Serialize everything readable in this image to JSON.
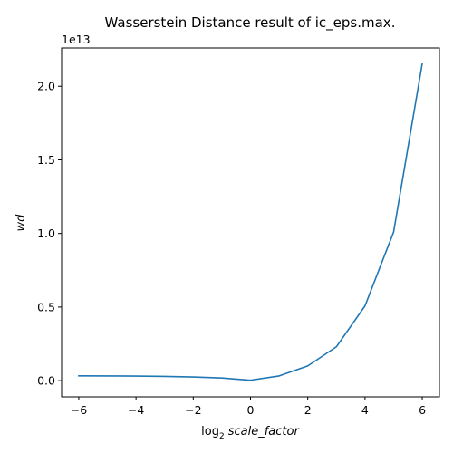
{
  "chart_data": {
    "type": "line",
    "title": "Wasserstein Distance result of ic_eps.max.",
    "xlabel_prefix": "log",
    "xlabel_sub": "2",
    "xlabel_var": "scale_factor",
    "ylabel": "wd",
    "offset_text": "1e13",
    "xlim": [
      -6.6,
      6.6
    ],
    "ylim": [
      -0.11,
      2.26
    ],
    "xticks": [
      -6,
      -4,
      -2,
      0,
      2,
      4,
      6
    ],
    "xtick_labels": [
      "−6",
      "−4",
      "−2",
      "0",
      "2",
      "4",
      "6"
    ],
    "yticks": [
      0.0,
      0.5,
      1.0,
      1.5,
      2.0
    ],
    "ytick_labels": [
      "0.0",
      "0.5",
      "1.0",
      "1.5",
      "2.0"
    ],
    "grid": false,
    "series": [
      {
        "color": "#1f77b4",
        "x": [
          -6,
          -5,
          -4,
          -3,
          -2,
          -1,
          0,
          1,
          2,
          3,
          4,
          5,
          6
        ],
        "y": [
          0.033,
          0.032,
          0.031,
          0.029,
          0.025,
          0.018,
          0.003,
          0.032,
          0.1,
          0.23,
          0.508,
          1.01,
          2.155
        ]
      }
    ]
  }
}
